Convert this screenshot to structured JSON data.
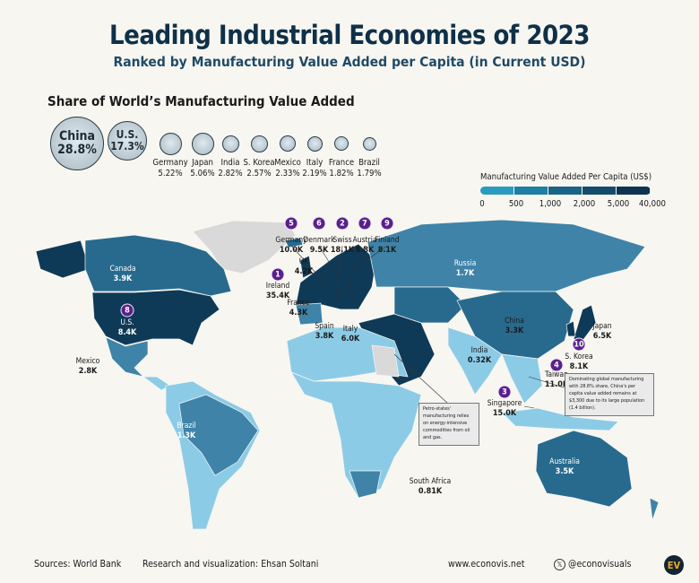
{
  "header": {
    "title": "Leading Industrial Economies of 2023",
    "subtitle": "Ranked by Manufacturing Value Added per Capita (in Current USD)"
  },
  "share": {
    "title": "Share of World’s Manufacturing Value Added",
    "items": [
      {
        "country": "China",
        "value": "28.8%"
      },
      {
        "country": "U.S.",
        "value": "17.3%"
      },
      {
        "country": "Germany",
        "value": "5.22%"
      },
      {
        "country": "Japan",
        "value": "5.06%"
      },
      {
        "country": "India",
        "value": "2.82%"
      },
      {
        "country": "S. Korea",
        "value": "2.57%"
      },
      {
        "country": "Mexico",
        "value": "2.33%"
      },
      {
        "country": "Italy",
        "value": "2.19%"
      },
      {
        "country": "France",
        "value": "1.82%"
      },
      {
        "country": "Brazil",
        "value": "1.79%"
      }
    ]
  },
  "legend": {
    "title": "Manufacturing Value Added Per Capita  (US$)",
    "ticks": [
      "0",
      "500",
      "1,000",
      "2,000",
      "5,000",
      "40,000"
    ],
    "colors": [
      "#2a9bc0",
      "#1f7ea4",
      "#1a6587",
      "#134c6b",
      "#0c3450"
    ]
  },
  "map_colors": {
    "lightest": "#b5dcef",
    "light": "#8ccbe6",
    "mid": "#3f83a8",
    "midDark": "#286a8e",
    "dark": "#0f3a57",
    "noData": "#d9d9d9"
  },
  "labels": [
    {
      "country": "Germany",
      "value": "10.0K",
      "rank": "5"
    },
    {
      "country": "Denmark",
      "value": "9.5K",
      "rank": "6"
    },
    {
      "country": "Swiss",
      "value": "18.1K",
      "rank": "2"
    },
    {
      "country": "Austria",
      "value": "8.8K",
      "rank": "7"
    },
    {
      "country": "Finland",
      "value": "8.1K",
      "rank": "9"
    },
    {
      "country": "Ireland",
      "value": "35.4K",
      "rank": "1"
    },
    {
      "country": "UK",
      "value": "4.2K"
    },
    {
      "country": "France",
      "value": "4.3K"
    },
    {
      "country": "U.S.",
      "value": "8.4K",
      "rank": "8"
    },
    {
      "country": "Canada",
      "value": "3.9K"
    },
    {
      "country": "Mexico",
      "value": "2.8K"
    },
    {
      "country": "Brazil",
      "value": "1.3K"
    },
    {
      "country": "Spain",
      "value": "3.8K"
    },
    {
      "country": "Italy",
      "value": "6.0K"
    },
    {
      "country": "Russia",
      "value": "1.7K"
    },
    {
      "country": "China",
      "value": "3.3K"
    },
    {
      "country": "Japan",
      "value": "6.5K"
    },
    {
      "country": "India",
      "value": "0.32K"
    },
    {
      "country": "S. Korea",
      "value": "8.1K",
      "rank": "10"
    },
    {
      "country": "Taiwan",
      "value": "11.0K",
      "rank": "4"
    },
    {
      "country": "Singapore",
      "value": "15.0K",
      "rank": "3"
    },
    {
      "country": "South Africa",
      "value": "0.81K"
    },
    {
      "country": "Australia",
      "value": "3.5K"
    }
  ],
  "notes": {
    "china": "Dominating global manufacturing with 28.8% share, China's per capita value added remains at $3,300 due to its large population (1.4 billion).",
    "petro": "Petro-states' manufacturing relies on energy-intensive commodities from oil and gas."
  },
  "footer": {
    "source": "Sources: World Bank",
    "credit": "Research and visualization: Ehsan Soltani",
    "website": "www.econovis.net",
    "social": "@econovisuals",
    "logo": "EV"
  }
}
